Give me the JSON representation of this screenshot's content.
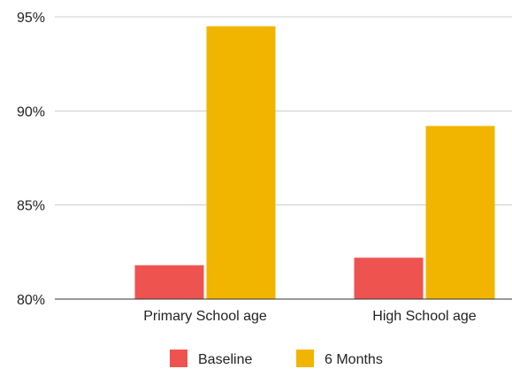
{
  "chart_data": {
    "type": "bar",
    "categories": [
      "Primary School age",
      "High School age"
    ],
    "series": [
      {
        "name": "Baseline",
        "values": [
          81.8,
          82.2
        ],
        "color": "#EF5350"
      },
      {
        "name": "6 Months",
        "values": [
          94.5,
          89.2
        ],
        "color": "#F1B500"
      }
    ],
    "ylim": [
      80,
      95
    ],
    "yticks": [
      {
        "value": 80,
        "label": "80%"
      },
      {
        "value": 85,
        "label": "85%"
      },
      {
        "value": 90,
        "label": "90%"
      },
      {
        "value": 95,
        "label": "95%"
      }
    ],
    "grid": true,
    "legend_position": "bottom",
    "colors": {
      "gridline": "#cccccc",
      "axis": "#333333",
      "text": "#222222"
    }
  }
}
